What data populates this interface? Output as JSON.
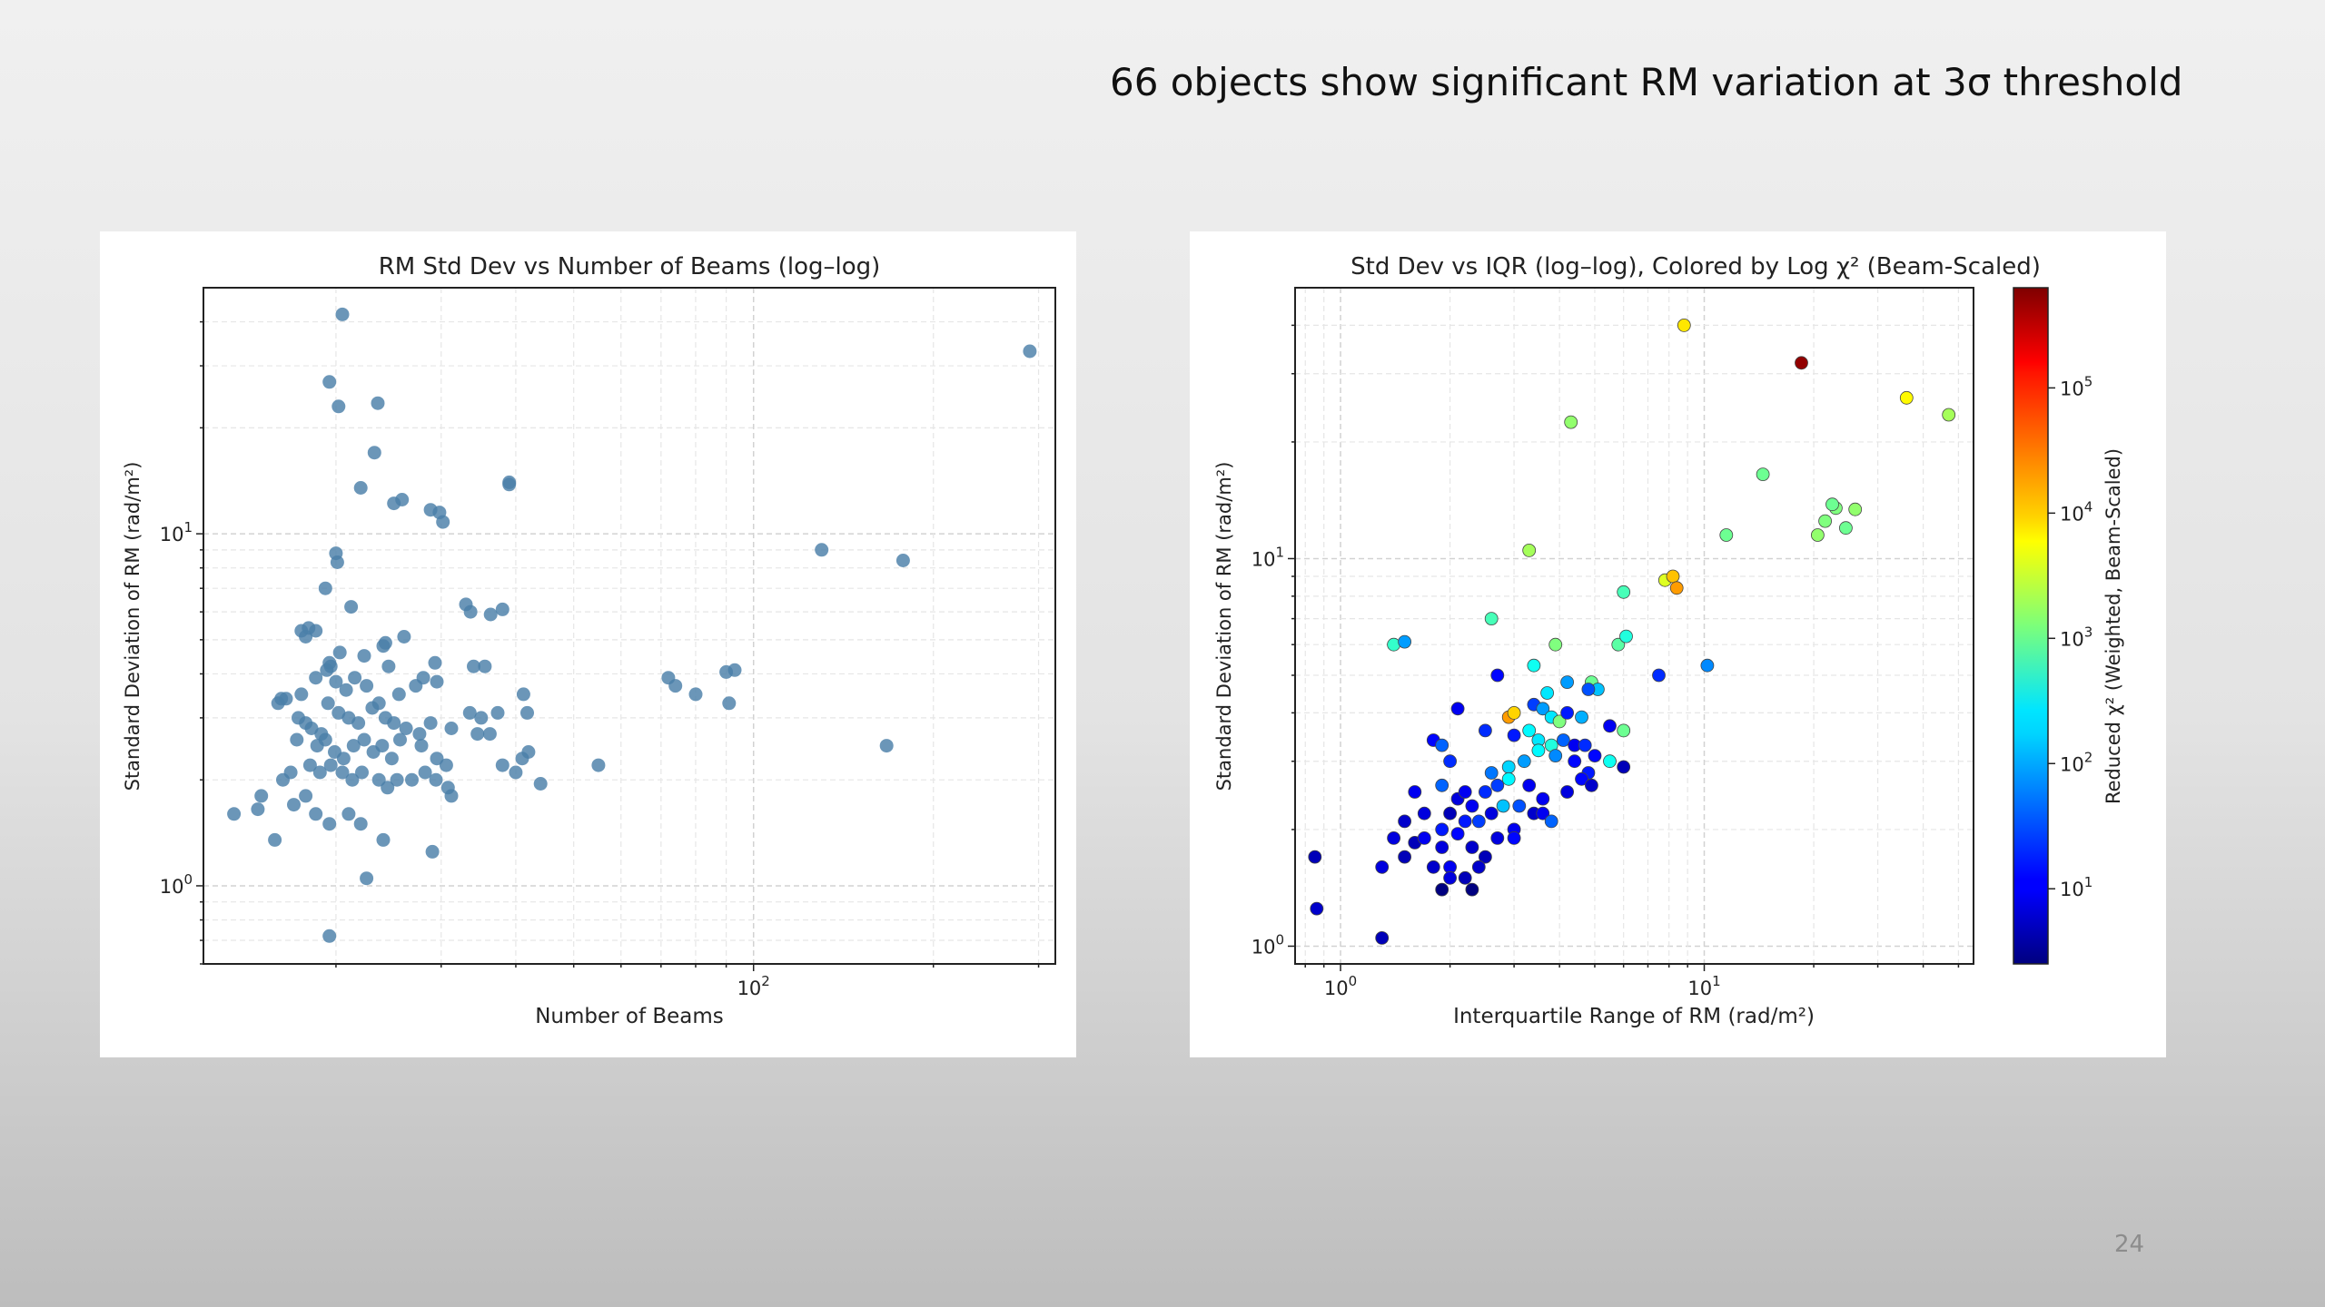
{
  "slide": {
    "title": "66 objects show significant RM variation at 3σ threshold",
    "page_number": "24"
  },
  "chart_data": [
    {
      "type": "scatter",
      "title": "RM Std Dev vs Number of Beams (log–log)",
      "xlabel": "Number of Beams",
      "ylabel": "Standard Deviation of RM (rad/m²)",
      "xscale": "log",
      "yscale": "log",
      "xlim": [
        12,
        320
      ],
      "ylim": [
        0.6,
        50
      ],
      "grid": true,
      "color": "#4a7fa8",
      "x_ticks": [
        {
          "value": 100,
          "base": "10",
          "exp": "2"
        }
      ],
      "y_ticks": [
        {
          "value": 1,
          "base": "10",
          "exp": "0"
        },
        {
          "value": 10,
          "base": "10",
          "exp": "1"
        }
      ],
      "points": [
        [
          20.5,
          42
        ],
        [
          19.5,
          27
        ],
        [
          20.2,
          23
        ],
        [
          23.5,
          23.5
        ],
        [
          23.2,
          17
        ],
        [
          22,
          13.5
        ],
        [
          25,
          12.2
        ],
        [
          25.8,
          12.5
        ],
        [
          28.8,
          11.7
        ],
        [
          29.8,
          11.5
        ],
        [
          30.2,
          10.8
        ],
        [
          39,
          13.8
        ],
        [
          39,
          14
        ],
        [
          20,
          8.8
        ],
        [
          20.1,
          8.3
        ],
        [
          19.2,
          7
        ],
        [
          21.2,
          6.2
        ],
        [
          33,
          6.3
        ],
        [
          33.6,
          6
        ],
        [
          36.3,
          5.9
        ],
        [
          38,
          6.1
        ],
        [
          17.5,
          5.3
        ],
        [
          18,
          5.4
        ],
        [
          17.8,
          5.1
        ],
        [
          18.5,
          5.3
        ],
        [
          19.5,
          4.3
        ],
        [
          20.3,
          4.6
        ],
        [
          22.3,
          4.5
        ],
        [
          24,
          4.8
        ],
        [
          24.2,
          4.9
        ],
        [
          26,
          5.1
        ],
        [
          29.3,
          4.3
        ],
        [
          34,
          4.2
        ],
        [
          35.5,
          4.2
        ],
        [
          16.2,
          3.4
        ],
        [
          17.5,
          3.5
        ],
        [
          18.5,
          3.9
        ],
        [
          19.3,
          4.1
        ],
        [
          19.6,
          4.2
        ],
        [
          20,
          3.8
        ],
        [
          20.8,
          3.6
        ],
        [
          21.5,
          3.9
        ],
        [
          22.5,
          3.7
        ],
        [
          23.6,
          3.3
        ],
        [
          24.5,
          4.2
        ],
        [
          25.5,
          3.5
        ],
        [
          27.2,
          3.7
        ],
        [
          28,
          3.9
        ],
        [
          29.5,
          3.8
        ],
        [
          16,
          3.3
        ],
        [
          16.5,
          3.4
        ],
        [
          17.3,
          3
        ],
        [
          17.8,
          2.9
        ],
        [
          18.2,
          2.8
        ],
        [
          18.9,
          2.7
        ],
        [
          19.4,
          3.3
        ],
        [
          20.2,
          3.1
        ],
        [
          21,
          3
        ],
        [
          21.8,
          2.9
        ],
        [
          23,
          3.2
        ],
        [
          24.2,
          3
        ],
        [
          25,
          2.9
        ],
        [
          26.2,
          2.8
        ],
        [
          27.6,
          2.7
        ],
        [
          28.8,
          2.9
        ],
        [
          31.2,
          2.8
        ],
        [
          33.5,
          3.1
        ],
        [
          35,
          3
        ],
        [
          37.3,
          3.1
        ],
        [
          41.2,
          3.5
        ],
        [
          41.8,
          3.1
        ],
        [
          17.2,
          2.6
        ],
        [
          18.6,
          2.5
        ],
        [
          19.2,
          2.6
        ],
        [
          19.9,
          2.4
        ],
        [
          20.6,
          2.3
        ],
        [
          21.4,
          2.5
        ],
        [
          22.3,
          2.6
        ],
        [
          23.1,
          2.4
        ],
        [
          23.9,
          2.5
        ],
        [
          24.8,
          2.3
        ],
        [
          25.6,
          2.6
        ],
        [
          27.8,
          2.5
        ],
        [
          29.5,
          2.3
        ],
        [
          30.6,
          2.2
        ],
        [
          34.5,
          2.7
        ],
        [
          36.2,
          2.7
        ],
        [
          41,
          2.3
        ],
        [
          42,
          2.4
        ],
        [
          16.3,
          2
        ],
        [
          16.8,
          2.1
        ],
        [
          18.1,
          2.2
        ],
        [
          18.8,
          2.1
        ],
        [
          19.6,
          2.2
        ],
        [
          20.5,
          2.1
        ],
        [
          21.3,
          2
        ],
        [
          22.1,
          2.1
        ],
        [
          23.6,
          2
        ],
        [
          24.4,
          1.9
        ],
        [
          25.3,
          2
        ],
        [
          26.8,
          2
        ],
        [
          28.2,
          2.1
        ],
        [
          29.4,
          2
        ],
        [
          30.8,
          1.9
        ],
        [
          31.2,
          1.8
        ],
        [
          38,
          2.2
        ],
        [
          40,
          2.1
        ],
        [
          44,
          1.95
        ],
        [
          55,
          2.2
        ],
        [
          13.5,
          1.6
        ],
        [
          14.8,
          1.65
        ],
        [
          15,
          1.8
        ],
        [
          17,
          1.7
        ],
        [
          17.8,
          1.8
        ],
        [
          18.5,
          1.6
        ],
        [
          19.5,
          1.5
        ],
        [
          21,
          1.6
        ],
        [
          22,
          1.5
        ],
        [
          24,
          1.35
        ],
        [
          15.8,
          1.35
        ],
        [
          29,
          1.25
        ],
        [
          22.5,
          1.05
        ],
        [
          19.5,
          0.72
        ],
        [
          72,
          3.9
        ],
        [
          74,
          3.7
        ],
        [
          80,
          3.5
        ],
        [
          90,
          4.05
        ],
        [
          93,
          4.1
        ],
        [
          91,
          3.3
        ],
        [
          130,
          9
        ],
        [
          178,
          8.4
        ],
        [
          167,
          2.5
        ],
        [
          290,
          33
        ]
      ]
    },
    {
      "type": "scatter",
      "title": "Std Dev vs IQR (log–log), Colored by Log χ² (Beam-Scaled)",
      "xlabel": "Interquartile Range of RM (rad/m²)",
      "ylabel": "Standard Deviation of RM (rad/m²)",
      "colorbar_label": "Reduced χ² (Weighted, Beam-Scaled)",
      "colormap": "jet",
      "xscale": "log",
      "yscale": "log",
      "xlim": [
        0.75,
        55
      ],
      "ylim": [
        0.9,
        50
      ],
      "grid": true,
      "colorbar_log_range": [
        0.4,
        5.8
      ],
      "x_ticks": [
        {
          "value": 1,
          "base": "10",
          "exp": "0"
        },
        {
          "value": 10,
          "base": "10",
          "exp": "1"
        }
      ],
      "y_ticks": [
        {
          "value": 1,
          "base": "10",
          "exp": "0"
        },
        {
          "value": 10,
          "base": "10",
          "exp": "1"
        }
      ],
      "colorbar_ticks": [
        {
          "value": 1,
          "base": "10",
          "exp": "1"
        },
        {
          "value": 2,
          "base": "10",
          "exp": "2"
        },
        {
          "value": 3,
          "base": "10",
          "exp": "3"
        },
        {
          "value": 4,
          "base": "10",
          "exp": "4"
        },
        {
          "value": 5,
          "base": "10",
          "exp": "5"
        }
      ],
      "points": [
        [
          8.8,
          40,
          3.9
        ],
        [
          18.5,
          32,
          5.7
        ],
        [
          4.3,
          22.5,
          3.2
        ],
        [
          36,
          26,
          3.8
        ],
        [
          47,
          23.5,
          3.3
        ],
        [
          14.5,
          16.5,
          3.0
        ],
        [
          23,
          13.5,
          3.1
        ],
        [
          22.5,
          13.8,
          3.0
        ],
        [
          26,
          13.4,
          3.2
        ],
        [
          21.5,
          12.5,
          3.1
        ],
        [
          24.5,
          12,
          3.0
        ],
        [
          20.5,
          11.5,
          3.2
        ],
        [
          11.5,
          11.5,
          3.0
        ],
        [
          3.3,
          10.5,
          3.3
        ],
        [
          7.8,
          8.8,
          3.6
        ],
        [
          8.2,
          9,
          4.1
        ],
        [
          8.4,
          8.4,
          4.3
        ],
        [
          6.0,
          8.2,
          2.8
        ],
        [
          2.6,
          7,
          2.8
        ],
        [
          1.4,
          6,
          2.7
        ],
        [
          1.5,
          6.1,
          1.9
        ],
        [
          3.9,
          6,
          3.1
        ],
        [
          5.8,
          6,
          2.9
        ],
        [
          6.1,
          6.3,
          2.6
        ],
        [
          10.2,
          5.3,
          1.8
        ],
        [
          7.5,
          5,
          1.3
        ],
        [
          2.7,
          5,
          1.1
        ],
        [
          3.4,
          5.3,
          2.5
        ],
        [
          3.7,
          4.5,
          2.3
        ],
        [
          4.2,
          4.8,
          1.9
        ],
        [
          4.9,
          4.8,
          3.0
        ],
        [
          5.1,
          4.6,
          2.1
        ],
        [
          4.8,
          4.6,
          1.5
        ],
        [
          2.1,
          4.1,
          1.0
        ],
        [
          2.9,
          3.9,
          4.3
        ],
        [
          3.0,
          4,
          4.0
        ],
        [
          3.4,
          4.2,
          1.4
        ],
        [
          3.6,
          4.1,
          1.9
        ],
        [
          3.8,
          3.9,
          2.3
        ],
        [
          4.0,
          3.8,
          3.1
        ],
        [
          4.2,
          4,
          1.2
        ],
        [
          4.6,
          3.9,
          2.0
        ],
        [
          5.5,
          3.7,
          1.0
        ],
        [
          6.0,
          3.6,
          3.0
        ],
        [
          1.8,
          3.4,
          1.1
        ],
        [
          1.9,
          3.3,
          1.6
        ],
        [
          2.5,
          3.6,
          1.3
        ],
        [
          3.0,
          3.5,
          1.2
        ],
        [
          3.3,
          3.6,
          2.4
        ],
        [
          3.5,
          3.4,
          2.3
        ],
        [
          3.8,
          3.3,
          2.6
        ],
        [
          4.1,
          3.4,
          1.6
        ],
        [
          4.4,
          3.3,
          1.0
        ],
        [
          4.7,
          3.3,
          1.3
        ],
        [
          5.0,
          3.1,
          1.1
        ],
        [
          5.5,
          3.0,
          2.5
        ],
        [
          6.0,
          2.9,
          0.7
        ],
        [
          2.0,
          3.0,
          1.3
        ],
        [
          2.6,
          2.8,
          1.7
        ],
        [
          2.9,
          2.9,
          2.2
        ],
        [
          3.2,
          3.0,
          1.9
        ],
        [
          3.5,
          3.2,
          2.4
        ],
        [
          3.9,
          3.1,
          1.8
        ],
        [
          4.4,
          3.0,
          1.1
        ],
        [
          4.8,
          2.8,
          1.2
        ],
        [
          1.6,
          2.5,
          1.0
        ],
        [
          1.9,
          2.6,
          1.6
        ],
        [
          2.1,
          2.4,
          0.9
        ],
        [
          2.2,
          2.5,
          1.0
        ],
        [
          2.5,
          2.5,
          1.3
        ],
        [
          2.7,
          2.6,
          1.4
        ],
        [
          2.9,
          2.7,
          2.4
        ],
        [
          3.1,
          2.3,
          1.5
        ],
        [
          3.3,
          2.6,
          1.0
        ],
        [
          3.6,
          2.4,
          1.0
        ],
        [
          4.2,
          2.5,
          0.9
        ],
        [
          4.6,
          2.7,
          1.1
        ],
        [
          4.9,
          2.6,
          0.8
        ],
        [
          1.5,
          2.1,
          0.8
        ],
        [
          1.7,
          2.2,
          0.9
        ],
        [
          1.9,
          2.0,
          1.2
        ],
        [
          2.0,
          2.2,
          0.7
        ],
        [
          2.2,
          2.1,
          1.2
        ],
        [
          2.3,
          2.3,
          1.0
        ],
        [
          2.4,
          2.1,
          1.4
        ],
        [
          2.6,
          2.2,
          0.9
        ],
        [
          2.8,
          2.3,
          2.1
        ],
        [
          3.0,
          2.0,
          1.0
        ],
        [
          3.4,
          2.2,
          0.8
        ],
        [
          3.6,
          2.2,
          1.0
        ],
        [
          3.8,
          2.1,
          1.6
        ],
        [
          1.4,
          1.9,
          0.9
        ],
        [
          1.6,
          1.85,
          0.7
        ],
        [
          1.7,
          1.9,
          1.0
        ],
        [
          1.9,
          1.8,
          0.9
        ],
        [
          2.1,
          1.95,
          1.1
        ],
        [
          2.3,
          1.8,
          0.8
        ],
        [
          2.5,
          1.7,
          0.7
        ],
        [
          2.7,
          1.9,
          0.9
        ],
        [
          3.0,
          1.9,
          1.1
        ],
        [
          1.5,
          1.7,
          0.7
        ],
        [
          1.8,
          1.6,
          0.8
        ],
        [
          2.0,
          1.6,
          1.0
        ],
        [
          2.2,
          1.5,
          0.7
        ],
        [
          2.4,
          1.6,
          0.8
        ],
        [
          1.3,
          1.6,
          0.9
        ],
        [
          0.85,
          1.7,
          0.7
        ],
        [
          0.86,
          1.25,
          0.8
        ],
        [
          1.3,
          1.05,
          0.7
        ],
        [
          1.9,
          1.4,
          0.3
        ],
        [
          2.0,
          1.5,
          0.9
        ],
        [
          2.3,
          1.4,
          0.4
        ]
      ]
    }
  ]
}
